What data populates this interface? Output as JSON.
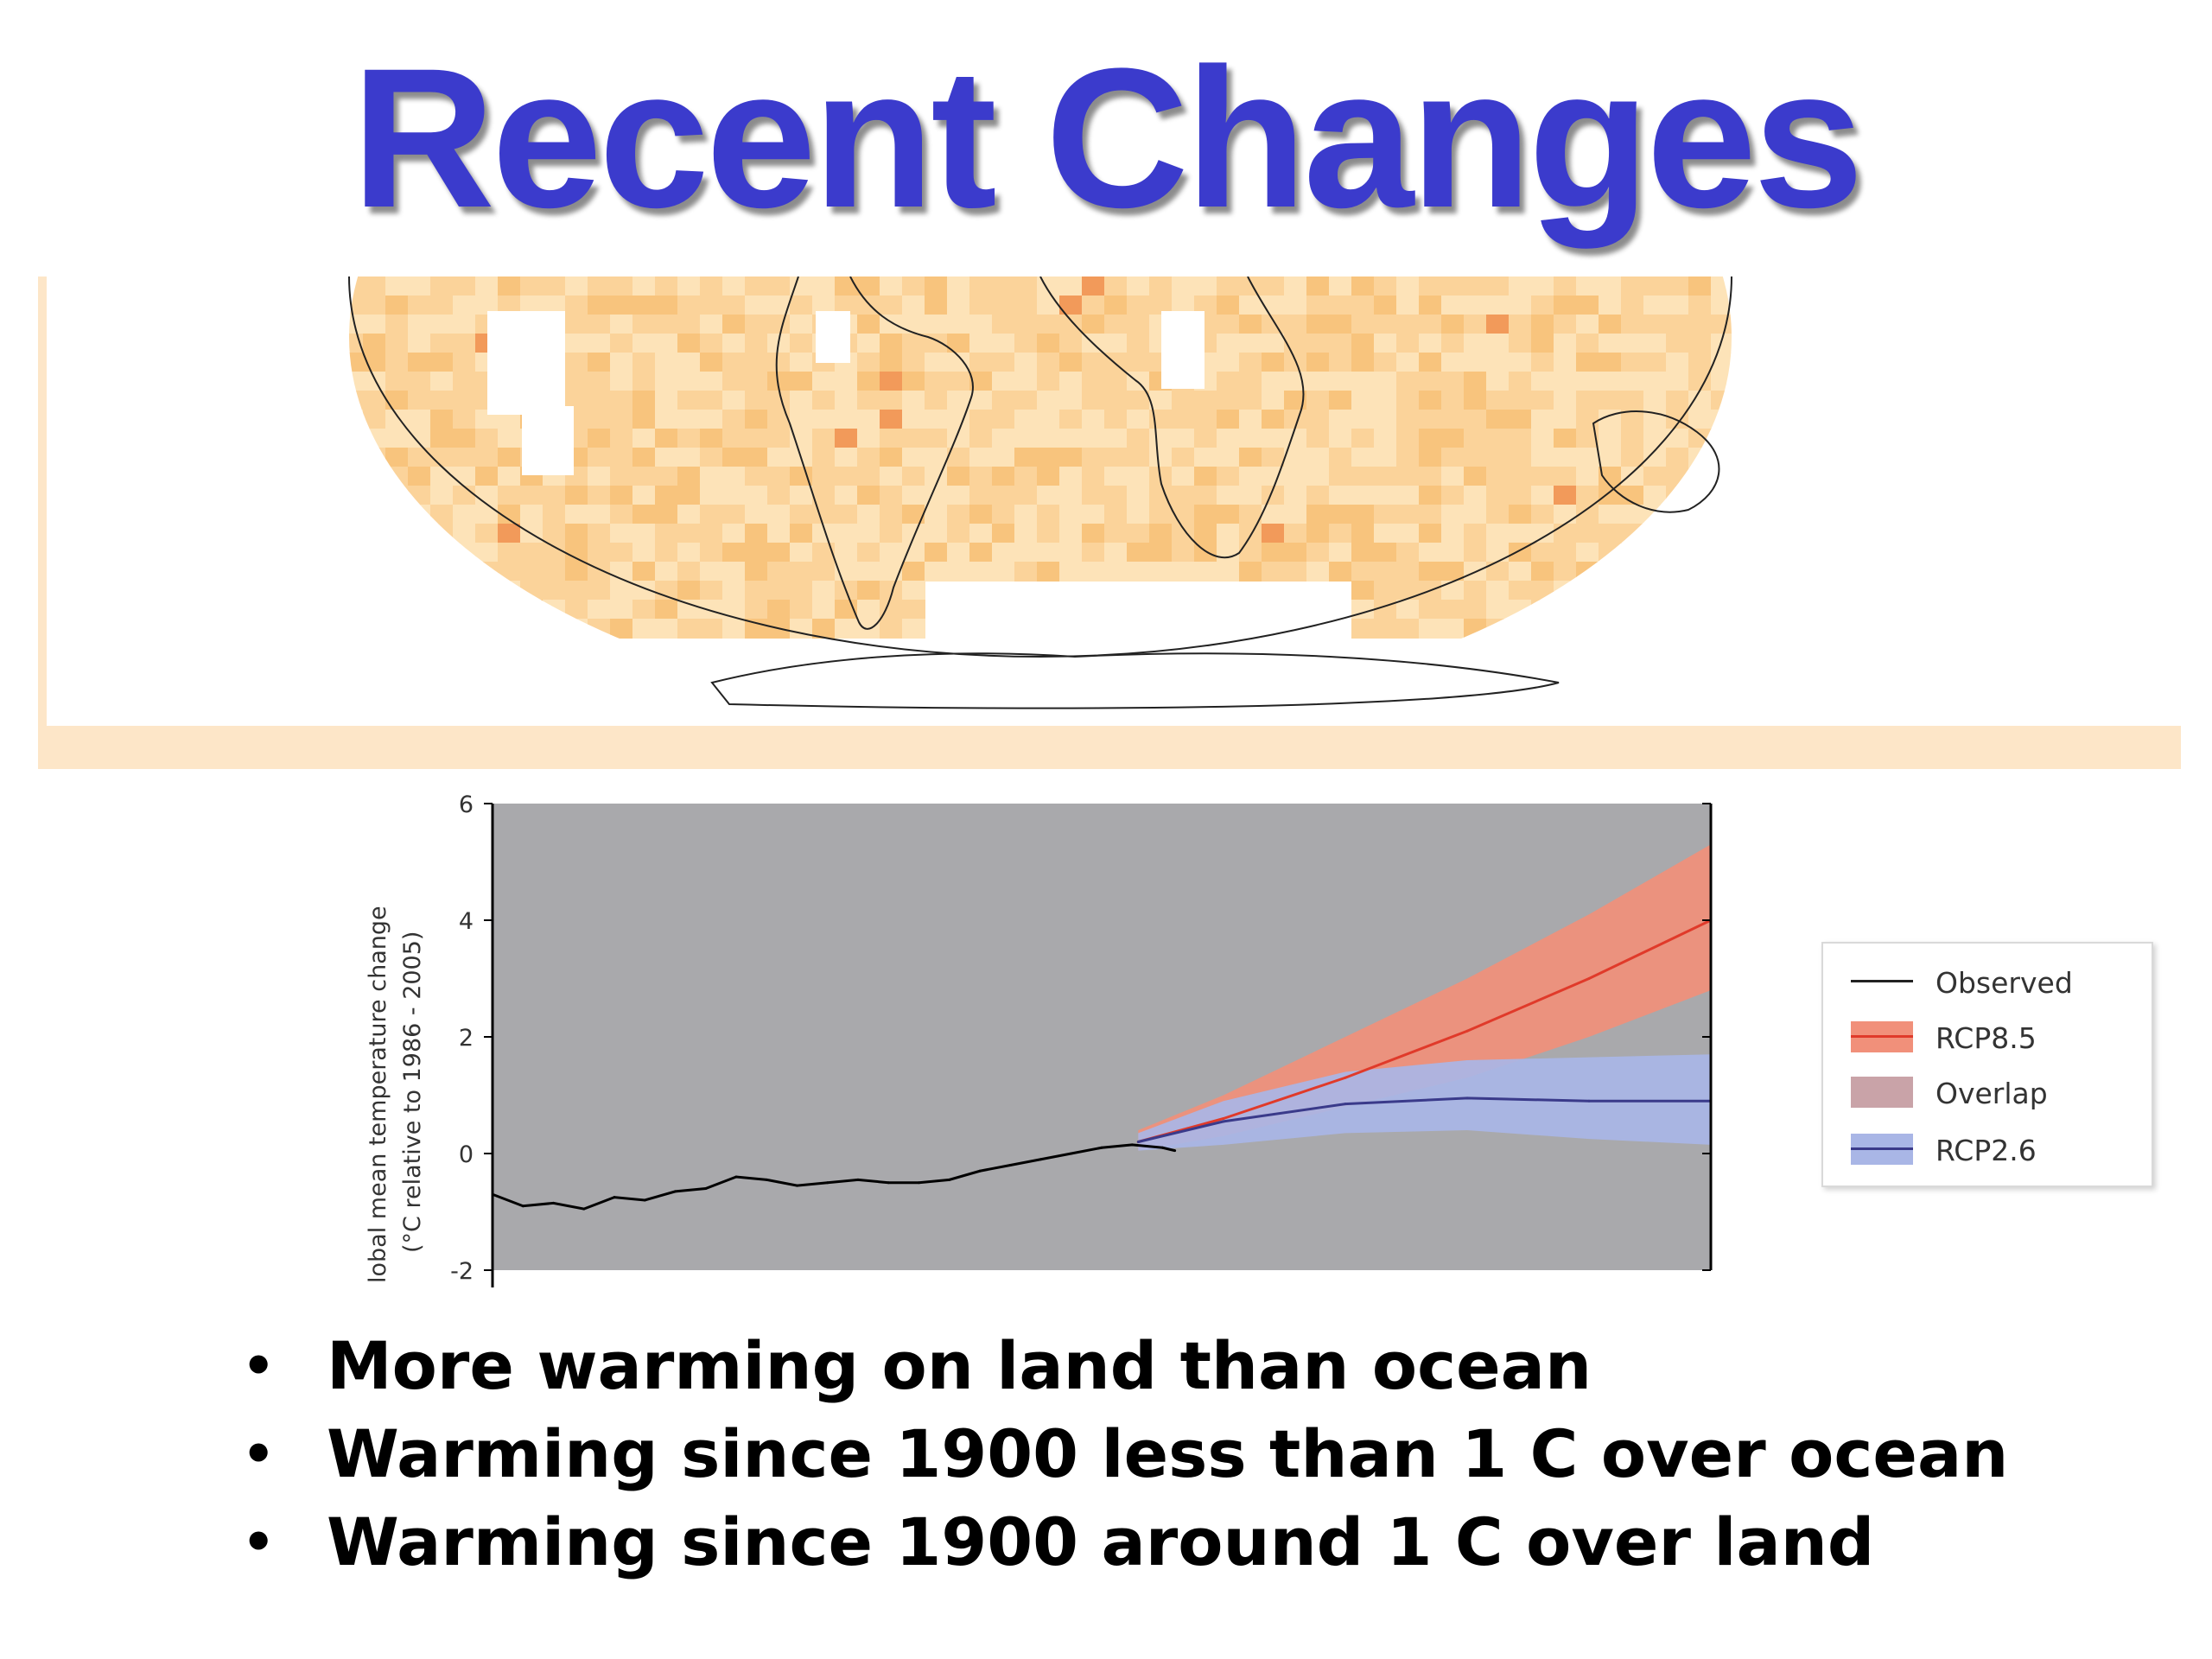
{
  "slide": {
    "title": "Recent Changes"
  },
  "map": {
    "fill_colors": [
      "#fde3b8",
      "#fbd39a",
      "#f8c47d",
      "#f29a5a"
    ]
  },
  "chart_data": {
    "type": "line",
    "ylabel_line1": "lobal mean temperature change",
    "ylabel_line2": "(°C relative to 1986 - 2005)",
    "yticks": [
      "6",
      "4",
      "2",
      "0",
      "-2"
    ],
    "ylim": [
      -2,
      6
    ],
    "xlim": [
      1900,
      2100
    ],
    "plot_background": "#a9a9ac",
    "series": [
      {
        "name": "Observed",
        "color": "#000000",
        "x": [
          1900,
          1905,
          1910,
          1915,
          1920,
          1925,
          1930,
          1935,
          1940,
          1945,
          1950,
          1955,
          1960,
          1965,
          1970,
          1975,
          1980,
          1985,
          1990,
          1995,
          2000,
          2005,
          2010,
          2012
        ],
        "y": [
          -0.7,
          -0.9,
          -0.85,
          -0.95,
          -0.75,
          -0.8,
          -0.65,
          -0.6,
          -0.4,
          -0.45,
          -0.55,
          -0.5,
          -0.45,
          -0.5,
          -0.5,
          -0.45,
          -0.3,
          -0.2,
          -0.1,
          0.0,
          0.1,
          0.15,
          0.1,
          0.05
        ]
      },
      {
        "name": "RCP8.5",
        "color": "#e03a2a",
        "band_color": "#f1907a",
        "x": [
          2006,
          2020,
          2040,
          2060,
          2080,
          2100
        ],
        "y": [
          0.2,
          0.6,
          1.3,
          2.1,
          3.0,
          4.0
        ],
        "upper": [
          0.4,
          1.0,
          2.0,
          3.0,
          4.1,
          5.3
        ],
        "lower": [
          0.05,
          0.3,
          0.8,
          1.3,
          2.0,
          2.8
        ]
      },
      {
        "name": "RCP2.6",
        "color": "#3a3a8a",
        "band_color": "#a9b6e6",
        "x": [
          2006,
          2020,
          2040,
          2060,
          2080,
          2100
        ],
        "y": [
          0.2,
          0.55,
          0.85,
          0.95,
          0.9,
          0.9
        ],
        "upper": [
          0.35,
          0.9,
          1.4,
          1.6,
          1.65,
          1.7
        ],
        "lower": [
          0.05,
          0.15,
          0.35,
          0.4,
          0.25,
          0.15
        ]
      }
    ],
    "legend": {
      "placement": "right",
      "entries": [
        {
          "label": "Observed",
          "kind": "line",
          "color": "#222222"
        },
        {
          "label": "RCP8.5",
          "kind": "band-line",
          "color": "#f1907a",
          "line": "#e03a2a"
        },
        {
          "label": "Overlap",
          "kind": "band",
          "color": "#c9a3a8"
        },
        {
          "label": "RCP2.6",
          "kind": "band-line",
          "color": "#a9b6e6",
          "line": "#3a3a8a"
        }
      ]
    }
  },
  "bullets": [
    "More warming on land than ocean",
    "Warming since 1900 less than 1 C over ocean",
    "Warming since 1900 around 1 C over land"
  ],
  "bullet_glyph": "•"
}
